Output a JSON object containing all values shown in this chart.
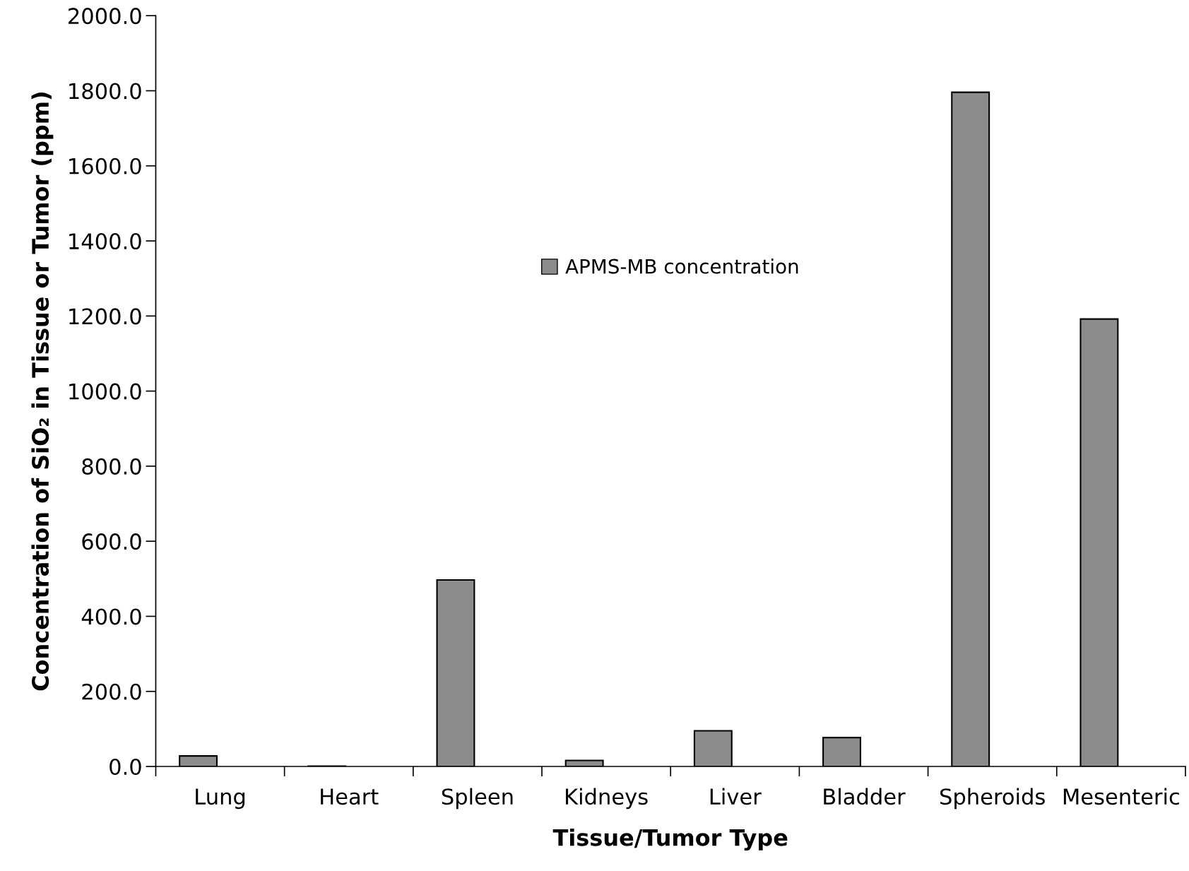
{
  "chart_data": {
    "type": "bar",
    "categories": [
      "Lung",
      "Heart",
      "Spleen",
      "Kidneys",
      "Liver",
      "Bladder",
      "Spheroids",
      "Mesenteric"
    ],
    "series": [
      {
        "name": "APMS-MB concentration",
        "color": "#8c8c8c",
        "values": [
          28,
          1,
          497,
          16,
          95,
          77,
          1796,
          1192
        ]
      }
    ],
    "xlabel": "Tissue/Tumor Type",
    "ylabel": "Concentration of SiO₂ in Tissue or Tumor (ppm)",
    "ylim": [
      0,
      2000
    ],
    "yticks": [
      {
        "value": 0,
        "label": "0.0"
      },
      {
        "value": 200,
        "label": "200.0"
      },
      {
        "value": 400,
        "label": "400.0"
      },
      {
        "value": 600,
        "label": "600.0"
      },
      {
        "value": 800,
        "label": "800.0"
      },
      {
        "value": 1000,
        "label": "1000.0"
      },
      {
        "value": 1200,
        "label": "1200.0"
      },
      {
        "value": 1400,
        "label": "1400.0"
      },
      {
        "value": 1600,
        "label": "1600.0"
      },
      {
        "value": 1800,
        "label": "1800.0"
      },
      {
        "value": 2000,
        "label": "2000.0"
      }
    ],
    "grid": false,
    "legend": "top"
  }
}
